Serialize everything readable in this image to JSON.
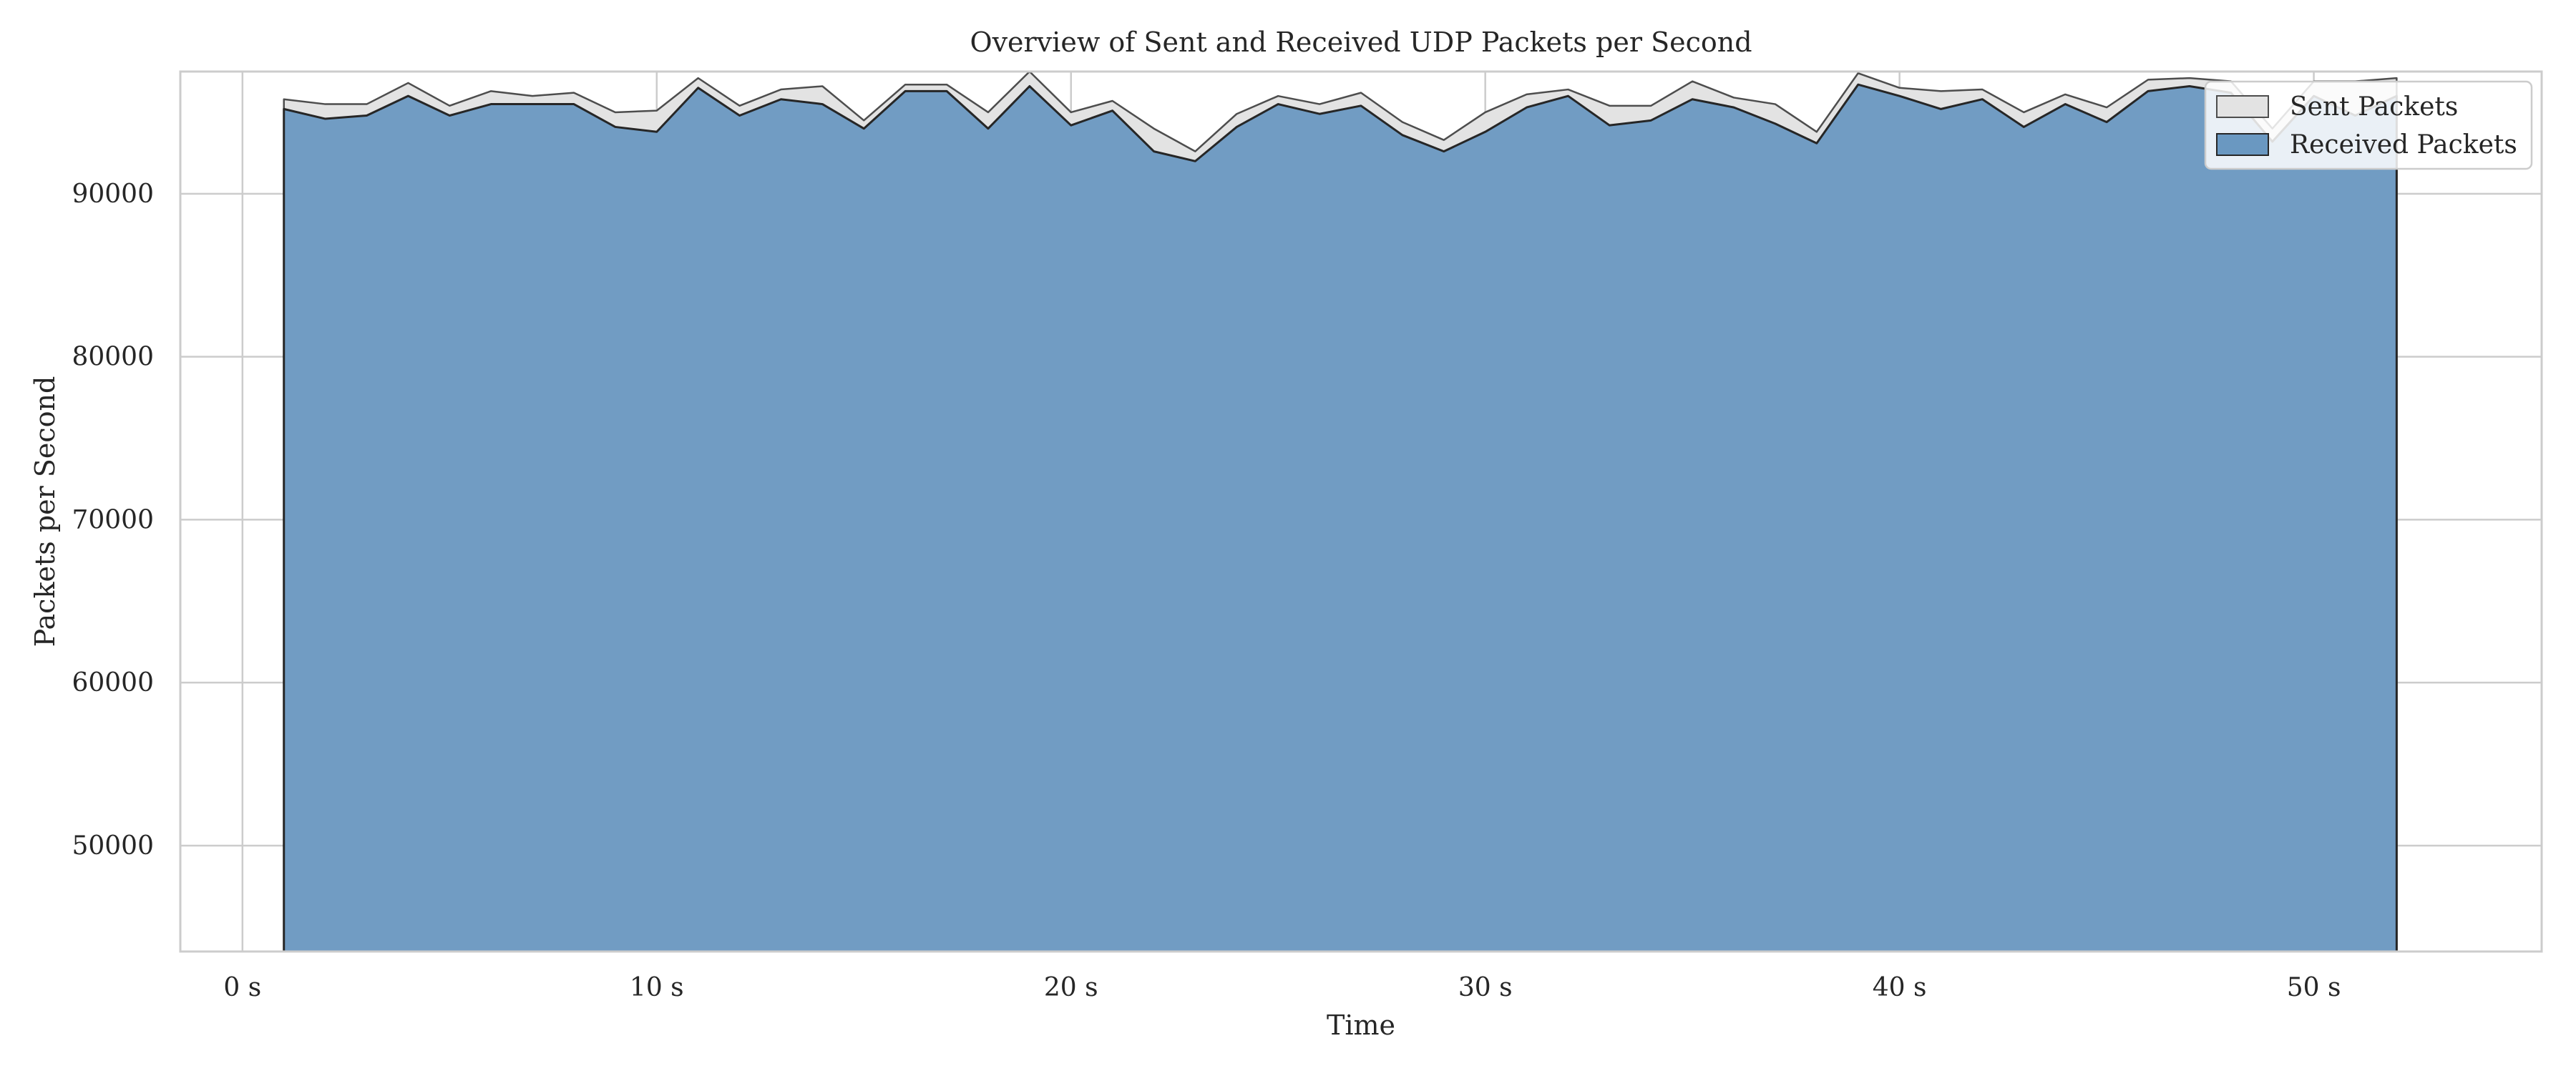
{
  "chart_data": {
    "type": "area",
    "title": "Overview of Sent and Received UDP Packets per Second",
    "xlabel": "Time",
    "ylabel": "Packets per Second",
    "xlim": [
      -1.5,
      55.5
    ],
    "ylim": [
      43500,
      97500
    ],
    "xticks": [
      0,
      10,
      20,
      30,
      40,
      50
    ],
    "xtick_labels": [
      "0 s",
      "10 s",
      "20 s",
      "30 s",
      "40 s",
      "50 s"
    ],
    "yticks": [
      50000,
      60000,
      70000,
      80000,
      90000
    ],
    "ytick_labels": [
      "50000",
      "60000",
      "70000",
      "80000",
      "90000"
    ],
    "grid": true,
    "legend_position": "top-right",
    "x": [
      1,
      2,
      3,
      4,
      5,
      6,
      7,
      8,
      9,
      10,
      11,
      12,
      13,
      14,
      15,
      16,
      17,
      18,
      19,
      20,
      21,
      22,
      23,
      24,
      25,
      26,
      27,
      28,
      29,
      30,
      31,
      32,
      33,
      34,
      35,
      36,
      37,
      38,
      39,
      40,
      41,
      42,
      43,
      44,
      45,
      46,
      47,
      48,
      49,
      50,
      51,
      52
    ],
    "series": [
      {
        "name": "Sent Packets",
        "color": "#e3e3e3",
        "edge_color": "#4d4d4d",
        "values": [
          95800,
          95500,
          95500,
          96800,
          95400,
          96300,
          96000,
          96200,
          95000,
          95100,
          97100,
          95400,
          96400,
          96600,
          94500,
          96700,
          96700,
          95000,
          97500,
          95000,
          95700,
          94000,
          92600,
          94900,
          96000,
          95500,
          96200,
          94400,
          93300,
          95000,
          96100,
          96400,
          95400,
          95400,
          96900,
          95900,
          95500,
          93800,
          97400,
          96500,
          96300,
          96400,
          95000,
          96100,
          95300,
          97000,
          97100,
          96900,
          94000,
          96900,
          96900,
          97100
        ]
      },
      {
        "name": "Received Packets",
        "color": "#6a98c1",
        "edge_color": "#262626",
        "values": [
          95200,
          94600,
          94800,
          96000,
          94800,
          95500,
          95500,
          95500,
          94100,
          93800,
          96500,
          94800,
          95800,
          95500,
          94000,
          96300,
          96300,
          94000,
          96600,
          94200,
          95100,
          92600,
          92000,
          94100,
          95500,
          94900,
          95400,
          93600,
          92600,
          93800,
          95300,
          96000,
          94200,
          94500,
          95800,
          95300,
          94300,
          93100,
          96700,
          96000,
          95200,
          95800,
          94100,
          95500,
          94400,
          96300,
          96600,
          96200,
          93200,
          96000,
          94800,
          96000
        ]
      }
    ]
  }
}
